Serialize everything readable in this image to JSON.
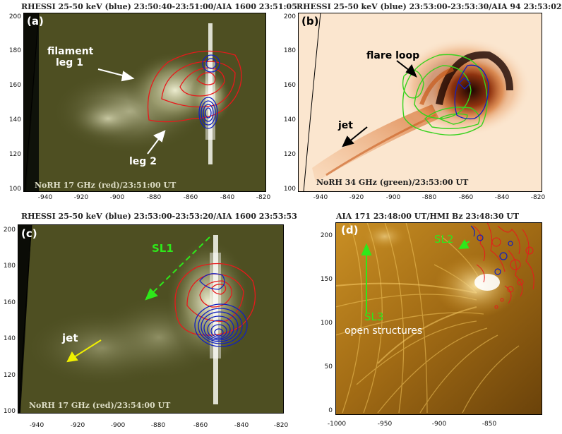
{
  "panels": {
    "a": {
      "title": "RHESSI 25-50 keV (blue) 23:50:40-23:51:00/AIA 1600 23:51:05",
      "letter": "(a)",
      "label1": "filament",
      "label2": "leg 1",
      "label3": "leg 2",
      "bottom": "NoRH 17 GHz (red)/23:51:00 UT",
      "xticks": [
        "-940",
        "-920",
        "-900",
        "-880",
        "-860",
        "-840",
        "-820"
      ],
      "yticks": [
        "200",
        "180",
        "160",
        "140",
        "120",
        "100"
      ]
    },
    "b": {
      "title": "RHESSI 25-50 keV (blue) 23:53:00-23:53:30/AIA 94 23:53:02",
      "letter": "(b)",
      "label1": "flare loop",
      "label2": "jet",
      "bottom": "NoRH 34 GHz (green)/23:53:00 UT",
      "xticks": [
        "-940",
        "-920",
        "-900",
        "-880",
        "-860",
        "-840",
        "-820"
      ],
      "yticks": [
        "200",
        "180",
        "160",
        "140",
        "120",
        "100"
      ]
    },
    "c": {
      "title": "RHESSI 25-50 keV (blue) 23:53:00-23:53:20/AIA 1600 23:53:53",
      "letter": "(c)",
      "label1": "SL1",
      "label2": "jet",
      "bottom": "NoRH 17 GHz (red)/23:54:00 UT",
      "xticks": [
        "-940",
        "-920",
        "-900",
        "-880",
        "-860",
        "-840",
        "-820"
      ],
      "yticks": [
        "200",
        "180",
        "160",
        "140",
        "120",
        "100"
      ]
    },
    "d": {
      "title": "AIA 171 23:48:00 UT/HMI Bz 23:48:30 UT",
      "letter": "(d)",
      "label1": "SL2",
      "label2": "SL3",
      "label3": "open structures",
      "xticks": [
        "-1000",
        "-950",
        "-900",
        "-850"
      ],
      "yticks": [
        "200",
        "150",
        "100",
        "50",
        "0"
      ]
    }
  },
  "colors": {
    "aia1600_bg": "#4e4f22",
    "aia94_bg": "#fbe6cf",
    "aia171_bg": "#8a5a10",
    "contour_red": "#e8191b",
    "contour_blue": "#1020c0",
    "contour_green": "#38d21e",
    "arrow_white": "#ffffff",
    "arrow_black": "#000000",
    "arrow_green": "#2ee81a",
    "arrow_yellow": "#f0f000"
  }
}
